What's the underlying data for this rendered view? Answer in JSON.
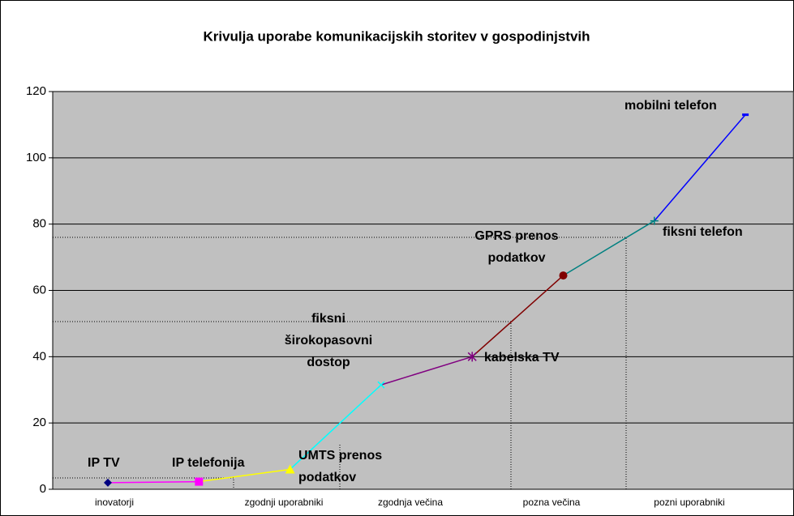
{
  "chart_data": {
    "type": "line",
    "title": "Krivulja uporabe komunikacijskih storitev v gospodinjstvih",
    "labels": [
      "IP TV",
      "IP telefonija",
      "UMTS prenos\npodatkov",
      "fiksni\nširokopasovni\ndostop",
      "kabelska TV",
      "GPRS prenos\npodatkov",
      "fiksni telefon",
      "mobilni telefon"
    ],
    "values": [
      2,
      2.3,
      6,
      31.5,
      40,
      64.5,
      81,
      113
    ],
    "colors": [
      "#000080",
      "#ff00ff",
      "#ffff00",
      "#00ffff",
      "#800080",
      "#800000",
      "#008080",
      "#0000ff"
    ],
    "phases": [
      "inovatorji",
      "zgodnji uporabniki",
      "zgodnja večina",
      "pozna večina",
      "pozni uporabniki"
    ],
    "ylim": [
      0,
      120
    ],
    "yticks": [
      0,
      20,
      40,
      60,
      80,
      100,
      120
    ],
    "grid": true
  }
}
